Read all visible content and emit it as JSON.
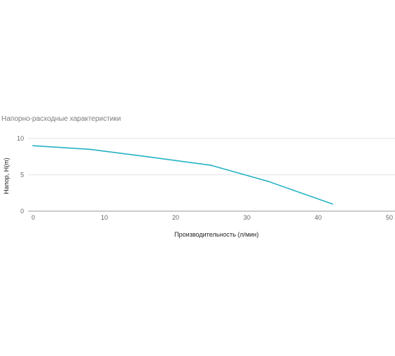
{
  "chart_data": {
    "type": "line",
    "title": "Напорно-расходные характеристики",
    "xlabel": "Производительность (л/мин)",
    "ylabel": "Напор, H(m)",
    "xlim": [
      0,
      50
    ],
    "ylim": [
      0,
      10
    ],
    "xticks": [
      "0",
      "10",
      "20",
      "30",
      "40",
      "50"
    ],
    "yticks": [
      "0",
      "5",
      "10"
    ],
    "grid": true,
    "legend": "none",
    "series": [
      {
        "color": "#26b3c4",
        "x": [
          0,
          8,
          16,
          25,
          33,
          42
        ],
        "y": [
          9,
          8.5,
          7.5,
          6.3,
          4.1,
          1
        ]
      }
    ]
  }
}
